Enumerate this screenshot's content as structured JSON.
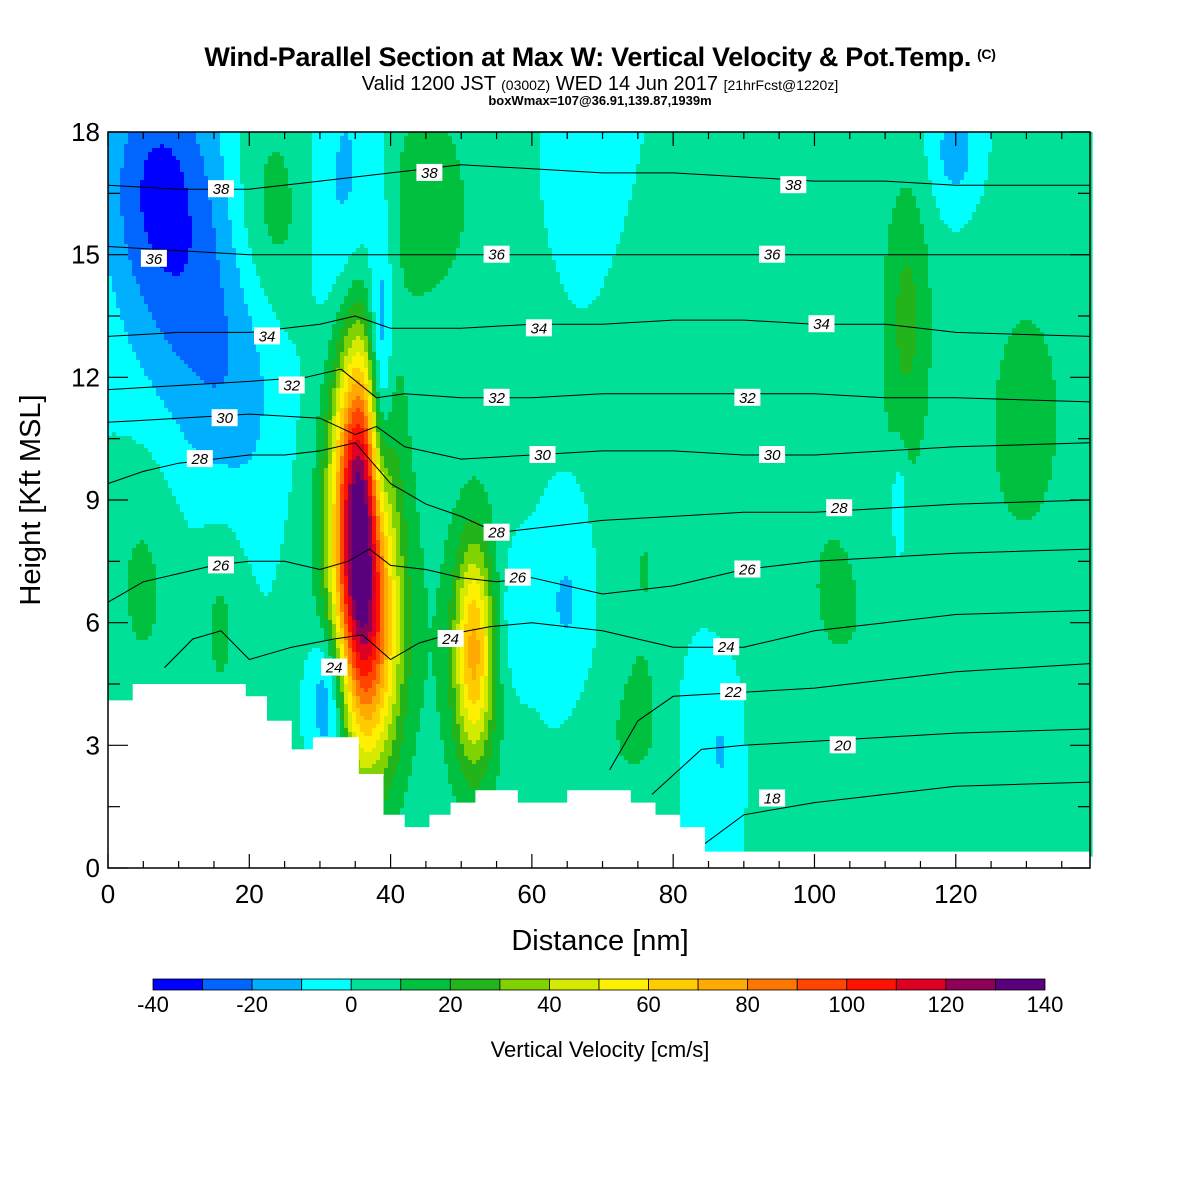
{
  "header": {
    "title": "Wind-Parallel Section at Max W: Vertical Velocity & Pot.Temp.",
    "copyright": "(C)",
    "valid_prefix": "Valid 1200 JST",
    "valid_utc": "(0300Z)",
    "valid_date": "WED 14 Jun 2017",
    "forecast": "[21hrFcst@1220z]",
    "box_info": "boxWmax=107@36.91,139.87,1939m"
  },
  "chart_data": {
    "type": "heatmap",
    "xlabel": "Distance [nm]",
    "ylabel": "Height [Kft MSL]",
    "xlim": [
      0,
      139
    ],
    "ylim": [
      0,
      18
    ],
    "x_ticks": [
      "0",
      "20",
      "40",
      "60",
      "80",
      "100",
      "120"
    ],
    "y_ticks": [
      "0",
      "3",
      "6",
      "9",
      "12",
      "15",
      "18"
    ],
    "colorbar": {
      "title": "Vertical Velocity [cm/s]",
      "levels": [
        -40,
        -30,
        -20,
        -10,
        0,
        10,
        20,
        30,
        40,
        50,
        60,
        70,
        80,
        90,
        100,
        110,
        120,
        130,
        140
      ],
      "tick_labels": [
        "-40",
        "-20",
        "0",
        "20",
        "40",
        "60",
        "80",
        "100",
        "120",
        "140"
      ],
      "colors": [
        "#0000ff",
        "#0066ff",
        "#00b0ff",
        "#00ffff",
        "#00e098",
        "#00c040",
        "#22b41a",
        "#80d200",
        "#d4ea00",
        "#ffef00",
        "#ffcc00",
        "#ffaa00",
        "#ff7700",
        "#ff4400",
        "#ff1200",
        "#dd0022",
        "#8f0058",
        "#5a007c"
      ]
    },
    "background_w": 0,
    "w_features": [
      {
        "x": 35.5,
        "z": 9.0,
        "sx": 2.6,
        "sz": 2.9,
        "w": 112
      },
      {
        "x": 37.0,
        "z": 5.5,
        "sx": 3.2,
        "sz": 2.3,
        "w": 58
      },
      {
        "x": 51.8,
        "z": 5.3,
        "sx": 1.9,
        "sz": 1.8,
        "w": 58
      },
      {
        "x": 36.5,
        "z": 7.5,
        "sx": 5.5,
        "sz": 5.0,
        "w": 16
      },
      {
        "x": 52.0,
        "z": 5.0,
        "sx": 4.0,
        "sz": 3.0,
        "w": 16
      },
      {
        "x": 38.5,
        "z": 11.5,
        "sx": 1.2,
        "sz": 2.5,
        "w": -42
      },
      {
        "x": 31.5,
        "z": 4.2,
        "sx": 2.0,
        "sz": 1.3,
        "w": -35
      },
      {
        "x": 34.0,
        "z": 15.5,
        "sx": 3.5,
        "sz": 3.0,
        "w": -18
      },
      {
        "x": 10.0,
        "z": 15.0,
        "sx": 6.0,
        "sz": 3.0,
        "w": -22
      },
      {
        "x": 18.0,
        "z": 12.0,
        "sx": 5.0,
        "sz": 2.5,
        "w": -14
      },
      {
        "x": 6.0,
        "z": 17.0,
        "sx": 5.0,
        "sz": 2.0,
        "w": -18
      },
      {
        "x": 23.0,
        "z": 16.0,
        "sx": 4.0,
        "sz": 2.0,
        "w": 16
      },
      {
        "x": 45.0,
        "z": 16.5,
        "sx": 4.0,
        "sz": 2.0,
        "w": 16
      },
      {
        "x": 5.0,
        "z": 7.0,
        "sx": 4.0,
        "sz": 2.5,
        "w": 12
      },
      {
        "x": 16.0,
        "z": 6.0,
        "sx": 2.5,
        "sz": 2.0,
        "w": 12
      },
      {
        "x": 113.0,
        "z": 13.5,
        "sx": 2.5,
        "sz": 2.5,
        "w": 22
      },
      {
        "x": 130.0,
        "z": 11.0,
        "sx": 7.0,
        "sz": 4.0,
        "w": 12
      },
      {
        "x": 102.0,
        "z": 7.0,
        "sx": 6.0,
        "sz": 3.5,
        "w": 10
      },
      {
        "x": 76.0,
        "z": 7.5,
        "sx": 5.0,
        "sz": 3.0,
        "w": 10
      },
      {
        "x": 57.0,
        "z": 15.0,
        "sx": 5.0,
        "sz": 3.0,
        "w": 9
      },
      {
        "x": 115.0,
        "z": 4.5,
        "sx": 6.0,
        "sz": 3.0,
        "w": 8
      },
      {
        "x": 74.0,
        "z": 3.0,
        "sx": 5.0,
        "sz": 1.5,
        "w": 8
      },
      {
        "x": 65.0,
        "z": 6.5,
        "sx": 3.0,
        "sz": 1.5,
        "w": -12
      },
      {
        "x": 83.0,
        "z": 3.5,
        "sx": 2.0,
        "sz": 1.5,
        "w": -10
      },
      {
        "x": 87.0,
        "z": 2.8,
        "sx": 1.5,
        "sz": 1.2,
        "w": -10
      },
      {
        "x": 57.0,
        "z": 6.0,
        "sx": 2.0,
        "sz": 1.5,
        "w": -12
      },
      {
        "x": 112.0,
        "z": 8.8,
        "sx": 0.8,
        "sz": 1.0,
        "w": -16
      },
      {
        "x": 120.0,
        "z": 17.5,
        "sx": 2.5,
        "sz": 1.0,
        "w": -16
      },
      {
        "x": 63.0,
        "z": 16.5,
        "sx": 4.0,
        "sz": 2.0,
        "w": -6
      }
    ],
    "terrain_kft": [
      [
        0,
        4.1
      ],
      [
        3.5,
        4.1
      ],
      [
        3.5,
        4.5
      ],
      [
        19.5,
        4.5
      ],
      [
        19.5,
        4.2
      ],
      [
        22.5,
        4.2
      ],
      [
        22.5,
        3.6
      ],
      [
        26,
        3.6
      ],
      [
        26,
        2.9
      ],
      [
        29,
        2.9
      ],
      [
        29,
        3.2
      ],
      [
        35.5,
        3.2
      ],
      [
        35.5,
        2.3
      ],
      [
        39,
        2.3
      ],
      [
        39,
        1.3
      ],
      [
        42,
        1.3
      ],
      [
        42,
        1.0
      ],
      [
        45.5,
        1.0
      ],
      [
        45.5,
        1.3
      ],
      [
        48.5,
        1.3
      ],
      [
        48.5,
        1.6
      ],
      [
        52,
        1.6
      ],
      [
        52,
        1.9
      ],
      [
        58,
        1.9
      ],
      [
        58,
        1.6
      ],
      [
        65,
        1.6
      ],
      [
        65,
        1.9
      ],
      [
        74,
        1.9
      ],
      [
        74,
        1.6
      ],
      [
        77.5,
        1.6
      ],
      [
        77.5,
        1.3
      ],
      [
        81,
        1.3
      ],
      [
        81,
        1.0
      ],
      [
        84.5,
        1.0
      ],
      [
        84.5,
        0.4
      ],
      [
        139,
        0.4
      ]
    ],
    "theta_lines": [
      {
        "theta": 18,
        "x": [
          84.5,
          90,
          100,
          110,
          120,
          139
        ],
        "z": [
          0.6,
          1.3,
          1.6,
          1.8,
          2.0,
          2.1
        ]
      },
      {
        "theta": 20,
        "x": [
          77,
          84,
          90,
          100,
          110,
          120,
          139
        ],
        "z": [
          1.8,
          2.9,
          3.0,
          3.1,
          3.2,
          3.3,
          3.4
        ]
      },
      {
        "theta": 22,
        "x": [
          71,
          75,
          80,
          90,
          100,
          110,
          120,
          139
        ],
        "z": [
          2.4,
          3.6,
          4.2,
          4.3,
          4.4,
          4.6,
          4.8,
          5.0
        ]
      },
      {
        "theta": 24,
        "x": [
          8,
          12,
          16,
          20,
          26,
          32,
          36,
          40,
          44,
          48,
          54,
          60,
          70,
          80,
          90,
          100,
          110,
          120,
          139
        ],
        "z": [
          4.9,
          5.6,
          5.8,
          5.1,
          5.4,
          5.6,
          5.7,
          5.1,
          5.5,
          5.7,
          5.9,
          6.0,
          5.8,
          5.4,
          5.4,
          5.8,
          6.0,
          6.2,
          6.3
        ]
      },
      {
        "theta": 26,
        "x": [
          0,
          5,
          10,
          15,
          20,
          25,
          30,
          34,
          37,
          40,
          45,
          50,
          55,
          60,
          65,
          70,
          80,
          90,
          100,
          110,
          120,
          139
        ],
        "z": [
          6.5,
          7.0,
          7.2,
          7.4,
          7.5,
          7.5,
          7.3,
          7.5,
          7.8,
          7.4,
          7.3,
          7.1,
          7.0,
          7.1,
          6.9,
          6.7,
          6.9,
          7.3,
          7.5,
          7.6,
          7.7,
          7.8
        ]
      },
      {
        "theta": 28,
        "x": [
          0,
          5,
          10,
          15,
          20,
          25,
          30,
          35,
          40,
          45,
          50,
          55,
          60,
          70,
          80,
          90,
          100,
          110,
          120,
          139
        ],
        "z": [
          9.4,
          9.7,
          9.9,
          10.0,
          10.1,
          10.1,
          10.2,
          10.4,
          9.4,
          8.9,
          8.6,
          8.2,
          8.3,
          8.5,
          8.6,
          8.7,
          8.7,
          8.8,
          8.9,
          9.0
        ]
      },
      {
        "theta": 30,
        "x": [
          0,
          10,
          20,
          30,
          35,
          38,
          42,
          50,
          60,
          70,
          80,
          90,
          100,
          110,
          120,
          139
        ],
        "z": [
          10.9,
          11.0,
          11.1,
          11.0,
          10.6,
          10.8,
          10.3,
          10.0,
          10.1,
          10.2,
          10.2,
          10.1,
          10.1,
          10.2,
          10.3,
          10.4
        ]
      },
      {
        "theta": 32,
        "x": [
          0,
          10,
          20,
          28,
          33,
          38,
          42,
          50,
          60,
          70,
          80,
          90,
          100,
          110,
          120,
          139
        ],
        "z": [
          11.7,
          11.8,
          11.9,
          12.0,
          12.2,
          11.5,
          11.6,
          11.5,
          11.5,
          11.6,
          11.6,
          11.6,
          11.6,
          11.5,
          11.5,
          11.4
        ]
      },
      {
        "theta": 34,
        "x": [
          0,
          10,
          20,
          30,
          35,
          40,
          50,
          60,
          70,
          80,
          90,
          100,
          110,
          120,
          139
        ],
        "z": [
          13.0,
          13.1,
          13.1,
          13.3,
          13.5,
          13.2,
          13.2,
          13.3,
          13.3,
          13.4,
          13.4,
          13.3,
          13.3,
          13.1,
          13.0
        ]
      },
      {
        "theta": 36,
        "x": [
          0,
          10,
          20,
          30,
          40,
          50,
          60,
          70,
          80,
          90,
          100,
          110,
          120,
          139
        ],
        "z": [
          15.2,
          15.1,
          15.0,
          15.0,
          15.0,
          15.0,
          15.0,
          15.0,
          15.0,
          15.0,
          15.0,
          15.0,
          15.0,
          15.0
        ]
      },
      {
        "theta": 38,
        "x": [
          0,
          10,
          20,
          30,
          40,
          50,
          60,
          70,
          80,
          90,
          100,
          110,
          120,
          139
        ],
        "z": [
          16.7,
          16.6,
          16.6,
          16.8,
          17.0,
          17.2,
          17.1,
          17.0,
          17.0,
          16.9,
          16.8,
          16.8,
          16.7,
          16.7
        ]
      }
    ],
    "contour_labels": [
      {
        "text": "38",
        "x": 16,
        "z": 16.6
      },
      {
        "text": "38",
        "x": 45.5,
        "z": 17.0
      },
      {
        "text": "38",
        "x": 97,
        "z": 16.7
      },
      {
        "text": "36",
        "x": 6.5,
        "z": 14.9
      },
      {
        "text": "36",
        "x": 55,
        "z": 15.0
      },
      {
        "text": "36",
        "x": 94,
        "z": 15.0
      },
      {
        "text": "34",
        "x": 22.5,
        "z": 13.0
      },
      {
        "text": "34",
        "x": 61,
        "z": 13.2
      },
      {
        "text": "34",
        "x": 101,
        "z": 13.3
      },
      {
        "text": "32",
        "x": 26,
        "z": 11.8
      },
      {
        "text": "32",
        "x": 55,
        "z": 11.5
      },
      {
        "text": "32",
        "x": 90.5,
        "z": 11.5
      },
      {
        "text": "30",
        "x": 16.5,
        "z": 11.0
      },
      {
        "text": "30",
        "x": 61.5,
        "z": 10.1
      },
      {
        "text": "30",
        "x": 94,
        "z": 10.1
      },
      {
        "text": "28",
        "x": 13,
        "z": 10.0
      },
      {
        "text": "28",
        "x": 55,
        "z": 8.2
      },
      {
        "text": "28",
        "x": 103.5,
        "z": 8.8
      },
      {
        "text": "26",
        "x": 16,
        "z": 7.4
      },
      {
        "text": "26",
        "x": 58,
        "z": 7.1
      },
      {
        "text": "26",
        "x": 90.5,
        "z": 7.3
      },
      {
        "text": "24",
        "x": 32,
        "z": 4.9
      },
      {
        "text": "24",
        "x": 48.5,
        "z": 5.6
      },
      {
        "text": "24",
        "x": 87.5,
        "z": 5.4
      },
      {
        "text": "22",
        "x": 88.5,
        "z": 4.3
      },
      {
        "text": "20",
        "x": 104,
        "z": 3.0
      },
      {
        "text": "18",
        "x": 94,
        "z": 1.7
      }
    ]
  }
}
